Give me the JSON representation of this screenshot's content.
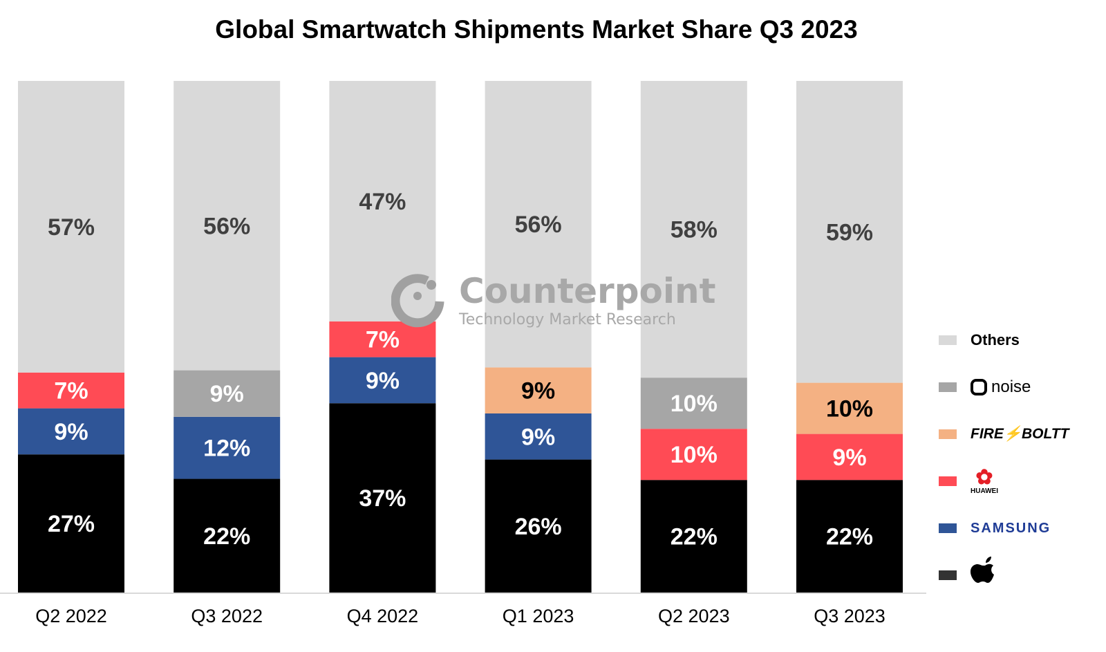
{
  "chart_data": {
    "type": "bar",
    "stacked": true,
    "title": "Global Smartwatch Shipments Market Share Q3 2023",
    "categories": [
      "Q2 2022",
      "Q3 2022",
      "Q4 2022",
      "Q1 2023",
      "Q2 2023",
      "Q3 2023"
    ],
    "unit": "%",
    "ylim": [
      0,
      100
    ],
    "grid": false,
    "legend_position": "right",
    "series": [
      {
        "name": "Apple",
        "legend_label": "",
        "color": "#000000",
        "legend_color": "#333333",
        "label_color": "#ffffff",
        "values": [
          27,
          22,
          37,
          26,
          22,
          22
        ]
      },
      {
        "name": "SAMSUNG",
        "legend_label": "SAMSUNG",
        "color": "#2f5597",
        "legend_color": "#2f5597",
        "label_color": "#ffffff",
        "values": [
          9,
          12,
          9,
          9,
          null,
          null
        ]
      },
      {
        "name": "HUAWEI",
        "legend_label": "HUAWEI",
        "color": "#ff4b55",
        "legend_color": "#ff4b55",
        "label_color": "#ffffff",
        "values": [
          7,
          null,
          7,
          null,
          10,
          9
        ]
      },
      {
        "name": "FIRE-BOLTT",
        "legend_label": "FIRE⚡BOLTT",
        "color": "#f4b183",
        "legend_color": "#f4b183",
        "label_color": "#000000",
        "values": [
          null,
          null,
          null,
          9,
          null,
          10
        ]
      },
      {
        "name": "noise",
        "legend_label": "noise",
        "color": "#a6a6a6",
        "legend_color": "#a6a6a6",
        "label_color": "#ffffff",
        "values": [
          null,
          9,
          null,
          null,
          10,
          null
        ]
      },
      {
        "name": "Others",
        "legend_label": "Others",
        "color": "#d9d9d9",
        "legend_color": "#d9d9d9",
        "label_color": "#404040",
        "values": [
          57,
          56,
          47,
          56,
          58,
          59
        ]
      }
    ]
  },
  "watermark": {
    "brand": "Counterpoint",
    "tagline": "Technology Market Research"
  }
}
